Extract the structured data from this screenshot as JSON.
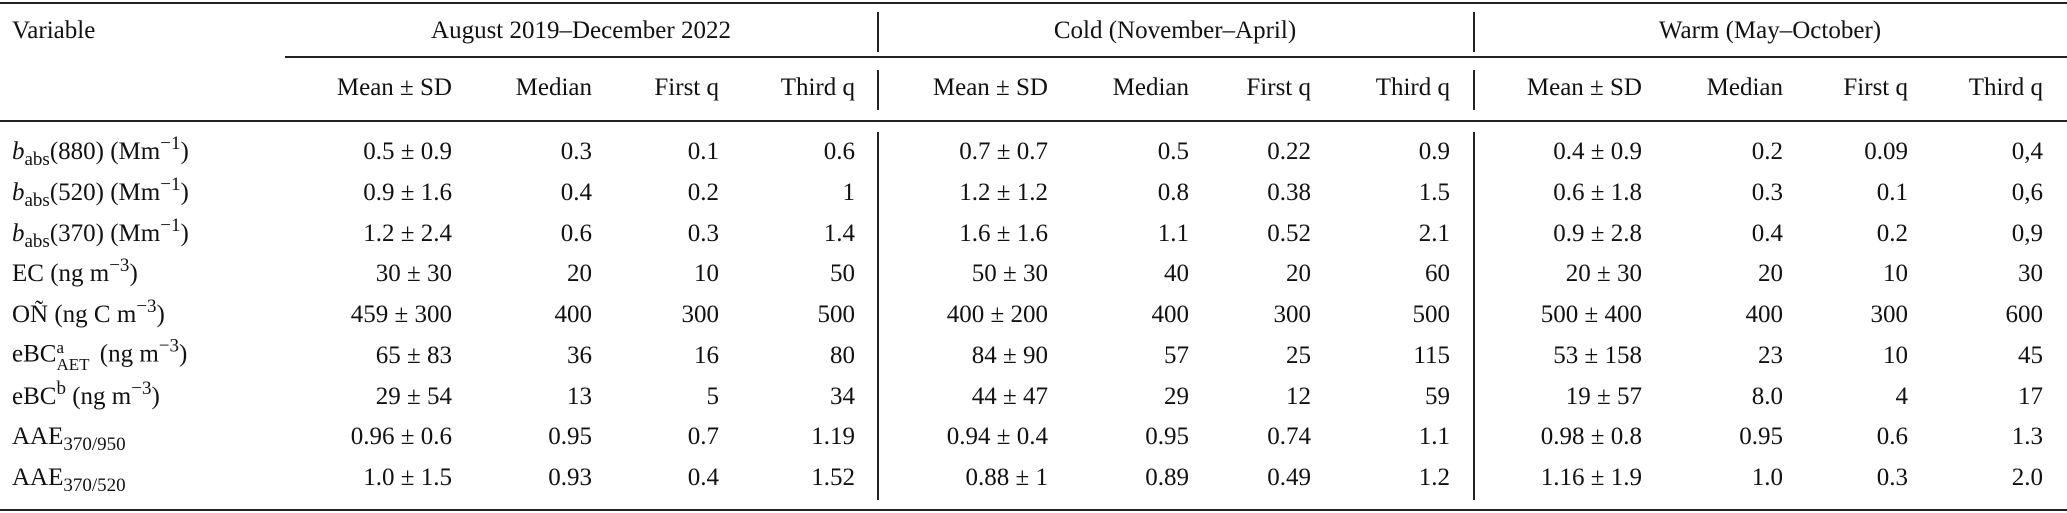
{
  "table": {
    "variable_header": "Variable",
    "groups": [
      {
        "label": "August 2019–December 2022"
      },
      {
        "label": "Cold (November–April)"
      },
      {
        "label": "Warm (May–October)"
      }
    ],
    "subheaders": [
      "Mean ± SD",
      "Median",
      "First q",
      "Third q"
    ],
    "rows": [
      {
        "variable": [
          {
            "t": "b",
            "s": "i"
          },
          {
            "t": "abs",
            "s": "sub"
          },
          {
            "t": "(880) (Mm"
          },
          {
            "t": "−1",
            "s": "sup"
          },
          {
            "t": ")"
          }
        ],
        "values": [
          "0.5 ± 0.9",
          "0.3",
          "0.1",
          "0.6",
          "0.7 ± 0.7",
          "0.5",
          "0.22",
          "0.9",
          "0.4 ± 0.9",
          "0.2",
          "0.09",
          "0,4"
        ]
      },
      {
        "variable": [
          {
            "t": "b",
            "s": "i"
          },
          {
            "t": "abs",
            "s": "sub"
          },
          {
            "t": "(520) (Mm"
          },
          {
            "t": "−1",
            "s": "sup"
          },
          {
            "t": ")"
          }
        ],
        "values": [
          "0.9 ± 1.6",
          "0.4",
          "0.2",
          "1",
          "1.2 ± 1.2",
          "0.8",
          "0.38",
          "1.5",
          "0.6 ± 1.8",
          "0.3",
          "0.1",
          "0,6"
        ]
      },
      {
        "variable": [
          {
            "t": "b",
            "s": "i"
          },
          {
            "t": "abs",
            "s": "sub"
          },
          {
            "t": "(370) (Mm"
          },
          {
            "t": "−1",
            "s": "sup"
          },
          {
            "t": ")"
          }
        ],
        "values": [
          "1.2 ± 2.4",
          "0.6",
          "0.3",
          "1.4",
          "1.6 ± 1.6",
          "1.1",
          "0.52",
          "2.1",
          "0.9 ± 2.8",
          "0.4",
          "0.2",
          "0,9"
        ]
      },
      {
        "variable": [
          {
            "t": "EC (ng m"
          },
          {
            "t": "−3",
            "s": "sup"
          },
          {
            "t": ")"
          }
        ],
        "values": [
          "30 ± 30",
          "20",
          "10",
          "50",
          "50 ± 30",
          "40",
          "20",
          "60",
          "20 ± 30",
          "20",
          "10",
          "30"
        ]
      },
      {
        "variable": [
          {
            "t": "OÑ (ng C m"
          },
          {
            "t": "−3",
            "s": "sup"
          },
          {
            "t": ")"
          }
        ],
        "values": [
          "459 ± 300",
          "400",
          "300",
          "500",
          "400 ± 200",
          "400",
          "300",
          "500",
          "500 ± 400",
          "400",
          "300",
          "600"
        ]
      },
      {
        "variable": [
          {
            "t": "eBC"
          },
          {
            "t": "a",
            "s": "supsub",
            "sub": "AET"
          },
          {
            "t": " (ng m"
          },
          {
            "t": "−3",
            "s": "sup"
          },
          {
            "t": ")"
          }
        ],
        "values": [
          "65 ± 83",
          "36",
          "16",
          "80",
          "84 ± 90",
          "57",
          "25",
          "115",
          "53 ± 158",
          "23",
          "10",
          "45"
        ]
      },
      {
        "variable": [
          {
            "t": "eBC"
          },
          {
            "t": "b",
            "s": "sup"
          },
          {
            "t": " (ng m"
          },
          {
            "t": "−3",
            "s": "sup"
          },
          {
            "t": ")"
          }
        ],
        "values": [
          "29 ± 54",
          "13",
          "5",
          "34",
          "44 ± 47",
          "29",
          "12",
          "59",
          "19 ± 57",
          "8.0",
          "4",
          "17"
        ]
      },
      {
        "variable": [
          {
            "t": "AAE"
          },
          {
            "t": "370/950",
            "s": "sub"
          }
        ],
        "values": [
          "0.96 ± 0.6",
          "0.95",
          "0.7",
          "1.19",
          "0.94 ± 0.4",
          "0.95",
          "0.74",
          "1.1",
          "0.98 ± 0.8",
          "0.95",
          "0.6",
          "1.3"
        ]
      },
      {
        "variable": [
          {
            "t": "AAE"
          },
          {
            "t": "370/520",
            "s": "sub"
          }
        ],
        "values": [
          "1.0 ± 1.5",
          "0.93",
          "0.4",
          "1.52",
          "0.88 ± 1",
          "0.89",
          "0.49",
          "1.2",
          "1.16 ± 1.9",
          "1.0",
          "0.3",
          "2.0"
        ]
      }
    ]
  }
}
